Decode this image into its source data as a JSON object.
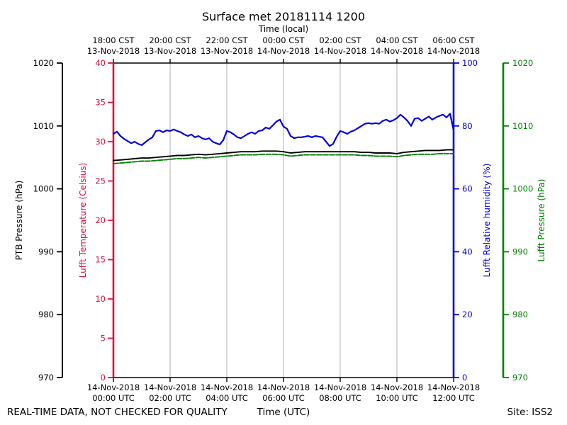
{
  "title": "Surface met 20181114 1200",
  "footer": {
    "left": "REAL-TIME DATA, NOT CHECKED FOR QUALITY",
    "center": "Time (UTC)",
    "right": "Site: ISS2"
  },
  "colors": {
    "ptb": "#000000",
    "temperature": "#dc143c",
    "humidity": "#0000dd",
    "lufft_pressure": "#008000",
    "grid": "#b0b0b0",
    "background": "#ffffff"
  },
  "axes": {
    "top": {
      "label": "Time (local)",
      "ticks": [
        {
          "time": "18:00 CST",
          "date": "13-Nov-2018"
        },
        {
          "time": "20:00 CST",
          "date": "13-Nov-2018"
        },
        {
          "time": "22:00 CST",
          "date": "13-Nov-2018"
        },
        {
          "time": "00:00 CST",
          "date": "14-Nov-2018"
        },
        {
          "time": "02:00 CST",
          "date": "14-Nov-2018"
        },
        {
          "time": "04:00 CST",
          "date": "14-Nov-2018"
        },
        {
          "time": "06:00 CST",
          "date": "14-Nov-2018"
        }
      ]
    },
    "bottom": {
      "label": "Time (UTC)",
      "ticks": [
        {
          "date": "14-Nov-2018",
          "time": "00:00 UTC"
        },
        {
          "date": "14-Nov-2018",
          "time": "02:00 UTC"
        },
        {
          "date": "14-Nov-2018",
          "time": "04:00 UTC"
        },
        {
          "date": "14-Nov-2018",
          "time": "06:00 UTC"
        },
        {
          "date": "14-Nov-2018",
          "time": "08:00 UTC"
        },
        {
          "date": "14-Nov-2018",
          "time": "10:00 UTC"
        },
        {
          "date": "14-Nov-2018",
          "time": "12:00 UTC"
        }
      ]
    },
    "ptb": {
      "label": "PTB Pressure (hPa)",
      "color": "#000000",
      "min": 970,
      "max": 1020,
      "ticks": [
        970,
        980,
        990,
        1000,
        1010,
        1020
      ]
    },
    "temperature": {
      "label": "Lufft Temperature (Celsius)",
      "color": "#dc143c",
      "min": 0,
      "max": 40,
      "ticks": [
        0,
        5,
        10,
        15,
        20,
        25,
        30,
        35,
        40
      ]
    },
    "humidity": {
      "label": "Lufft Relative humidity (%)",
      "color": "#0000dd",
      "min": 0,
      "max": 100,
      "ticks": [
        0,
        20,
        40,
        60,
        80,
        100
      ]
    },
    "lufft_pressure": {
      "label": "Lufft Pressure (hPa)",
      "color": "#008000",
      "min": 970,
      "max": 1020,
      "ticks": [
        970,
        980,
        990,
        1000,
        1010,
        1020
      ]
    }
  },
  "chart_data": {
    "type": "line",
    "title": "Surface met 20181114 1200",
    "x_axis": {
      "label_bottom": "Time (UTC)",
      "label_top": "Time (local)",
      "range_hours_utc": [
        0,
        12
      ],
      "tick_interval_hours": 2,
      "grid": "vertical-only"
    },
    "series": [
      {
        "name": "PTB Pressure",
        "units": "hPa",
        "color": "#000000",
        "style": "solid",
        "axis_range": [
          970,
          1020
        ],
        "x_start_hour": 0,
        "x_step_hours": 0.25,
        "values": [
          1004.5,
          1004.6,
          1004.7,
          1004.8,
          1004.9,
          1004.9,
          1005.0,
          1005.1,
          1005.2,
          1005.3,
          1005.3,
          1005.4,
          1005.5,
          1005.4,
          1005.5,
          1005.6,
          1005.7,
          1005.8,
          1005.9,
          1005.9,
          1005.9,
          1006.0,
          1006.0,
          1006.0,
          1005.9,
          1005.7,
          1005.8,
          1005.9,
          1005.9,
          1005.9,
          1005.9,
          1005.9,
          1005.9,
          1005.9,
          1005.9,
          1005.8,
          1005.8,
          1005.7,
          1005.7,
          1005.7,
          1005.6,
          1005.8,
          1005.9,
          1006.0,
          1006.1,
          1006.1,
          1006.1,
          1006.2,
          1006.2
        ]
      },
      {
        "name": "Lufft Pressure",
        "units": "hPa",
        "color": "#008000",
        "style": "dashed",
        "axis_range": [
          970,
          1020
        ],
        "x_start_hour": 0,
        "x_step_hours": 0.25,
        "values": [
          1004.0,
          1004.1,
          1004.2,
          1004.3,
          1004.4,
          1004.4,
          1004.5,
          1004.6,
          1004.7,
          1004.8,
          1004.8,
          1004.9,
          1005.0,
          1004.9,
          1005.0,
          1005.1,
          1005.2,
          1005.3,
          1005.4,
          1005.4,
          1005.4,
          1005.5,
          1005.5,
          1005.5,
          1005.4,
          1005.2,
          1005.3,
          1005.4,
          1005.4,
          1005.4,
          1005.4,
          1005.4,
          1005.4,
          1005.4,
          1005.4,
          1005.3,
          1005.3,
          1005.2,
          1005.2,
          1005.2,
          1005.1,
          1005.3,
          1005.4,
          1005.5,
          1005.5,
          1005.5,
          1005.6,
          1005.6,
          1005.6
        ]
      },
      {
        "name": "Lufft Relative humidity",
        "units": "%",
        "color": "#0000dd",
        "style": "solid",
        "axis_range": [
          0,
          100
        ],
        "x_start_hour": 0,
        "x_step_hours": 0.125,
        "values": [
          77.5,
          78.2,
          76.8,
          75.9,
          75.2,
          74.5,
          75.0,
          74.3,
          73.9,
          74.8,
          75.7,
          76.4,
          78.4,
          78.6,
          78.0,
          78.6,
          78.4,
          78.9,
          78.4,
          78.0,
          77.3,
          76.8,
          77.3,
          76.4,
          76.8,
          76.1,
          75.7,
          76.1,
          75.0,
          74.5,
          74.1,
          75.5,
          78.4,
          78.0,
          77.3,
          76.4,
          76.1,
          76.8,
          77.5,
          78.0,
          77.5,
          78.4,
          78.6,
          79.5,
          79.1,
          80.2,
          81.4,
          82.0,
          79.8,
          79.1,
          76.8,
          76.1,
          76.4,
          76.4,
          76.6,
          76.8,
          76.4,
          76.8,
          76.6,
          76.4,
          75.0,
          73.6,
          74.3,
          76.6,
          78.4,
          78.0,
          77.5,
          78.2,
          78.6,
          79.3,
          80.0,
          80.7,
          80.9,
          80.7,
          80.9,
          80.7,
          81.6,
          82.0,
          81.4,
          81.8,
          82.5,
          83.6,
          82.7,
          81.6,
          80.0,
          82.3,
          82.5,
          81.6,
          82.3,
          83.0,
          82.0,
          82.7,
          83.2,
          83.6,
          82.7,
          83.9,
          78.6
        ]
      },
      {
        "name": "Lufft Temperature",
        "units": "Celsius",
        "color": "#dc143c",
        "style": "solid",
        "axis_range": [
          0,
          40
        ],
        "x_start_hour": 0,
        "x_step_hours": 0.25,
        "values": []
      }
    ]
  }
}
